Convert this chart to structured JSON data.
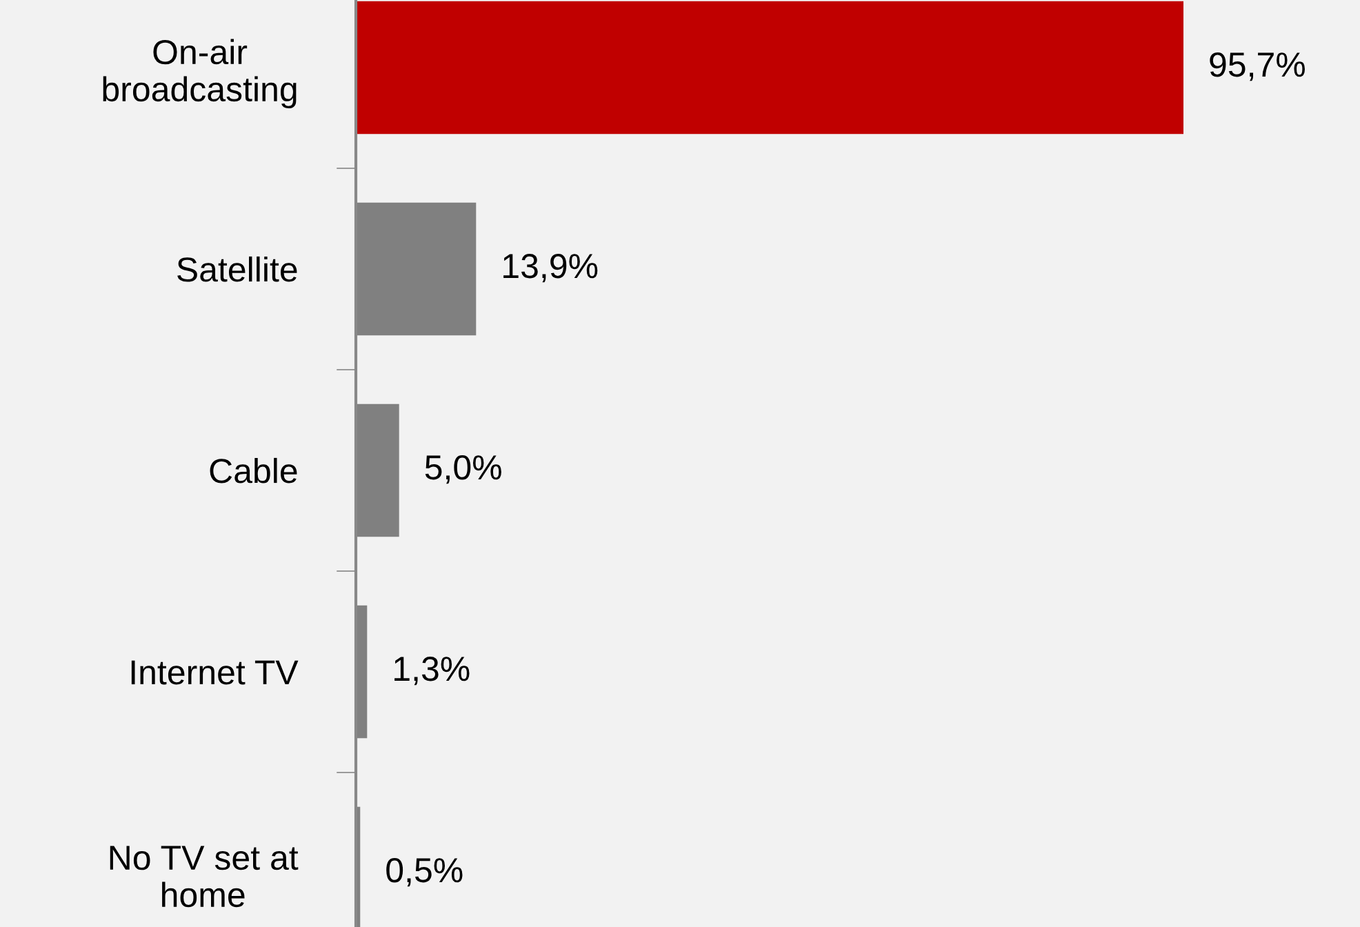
{
  "chart_data": {
    "type": "bar",
    "orientation": "horizontal",
    "categories": [
      "On-air\nbroadcasting",
      "Satellite",
      "Cable",
      "Internet TV",
      "No TV set at\nhome"
    ],
    "values": [
      95.7,
      13.9,
      5.0,
      1.3,
      0.5
    ],
    "colors": [
      "#c00000",
      "#808080",
      "#808080",
      "#808080",
      "#808080"
    ],
    "value_labels": [
      "95,7%",
      "13,9%",
      "5,0%",
      "1,3%",
      "0,5%"
    ],
    "grid": false,
    "legend": false
  }
}
